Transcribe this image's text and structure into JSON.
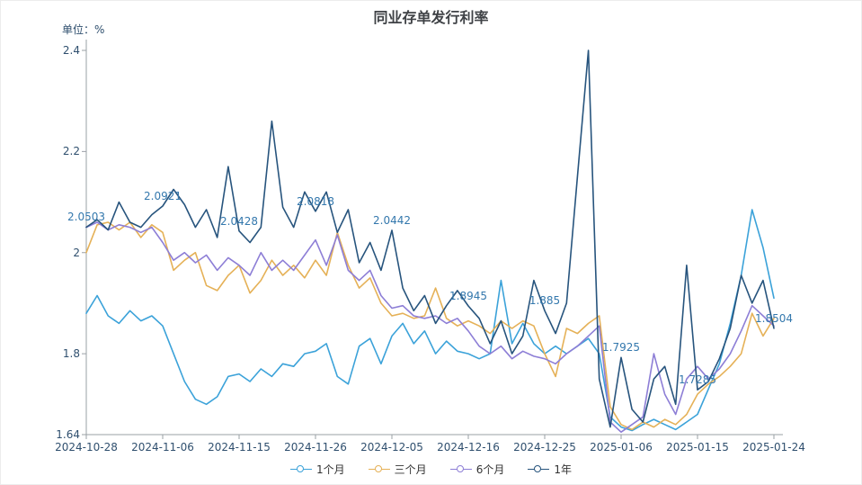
{
  "title": "同业存单发行利率",
  "unit_label": "单位：%",
  "legend": {
    "position": "bottom"
  },
  "chart_data": {
    "type": "line",
    "title": "同业存单发行利率",
    "ylabel": "单位：%",
    "ylim": [
      1.64,
      2.4
    ],
    "y_ticks": [
      1.64,
      1.8,
      2,
      2.2,
      2.4
    ],
    "grid": false,
    "legend_position": "bottom",
    "x_tick_labels": [
      "2024-10-28",
      "2024-11-06",
      "2024-11-15",
      "2024-11-26",
      "2024-12-05",
      "2024-12-16",
      "2024-12-25",
      "2025-01-06",
      "2025-01-15",
      "2025-01-24"
    ],
    "point_labels": [
      {
        "tick": 0,
        "text": "2.0503",
        "value": 2.0503
      },
      {
        "tick": 1,
        "text": "2.0921",
        "value": 2.0921
      },
      {
        "tick": 2,
        "text": "2.0428",
        "value": 2.0428
      },
      {
        "tick": 3,
        "text": "2.0818",
        "value": 2.0818
      },
      {
        "tick": 4,
        "text": "2.0442",
        "value": 2.0442
      },
      {
        "tick": 5,
        "text": "1.8945",
        "value": 1.8945
      },
      {
        "tick": 6,
        "text": "1.885",
        "value": 1.885
      },
      {
        "tick": 7,
        "text": "1.7925",
        "value": 1.7925
      },
      {
        "tick": 8,
        "text": "1.7285",
        "value": 1.7285
      },
      {
        "tick": 9,
        "text": "1.8504",
        "value": 1.8504
      }
    ],
    "series": [
      {
        "name": "1个月",
        "color": "#3ba2d9",
        "values": [
          1.88,
          1.915,
          1.875,
          1.86,
          1.885,
          1.865,
          1.875,
          1.855,
          1.8,
          1.745,
          1.71,
          1.7,
          1.715,
          1.755,
          1.76,
          1.745,
          1.77,
          1.755,
          1.78,
          1.775,
          1.8,
          1.805,
          1.82,
          1.755,
          1.74,
          1.815,
          1.83,
          1.78,
          1.835,
          1.86,
          1.82,
          1.845,
          1.8,
          1.825,
          1.805,
          1.8,
          1.79,
          1.8,
          1.945,
          1.82,
          1.86,
          1.82,
          1.8,
          1.815,
          1.8,
          1.815,
          1.83,
          1.8,
          1.675,
          1.655,
          1.648,
          1.66,
          1.67,
          1.66,
          1.65,
          1.665,
          1.68,
          1.73,
          1.78,
          1.86,
          1.955,
          2.085,
          2.01,
          1.91
        ]
      },
      {
        "name": "三个月",
        "color": "#e5b157",
        "values": [
          2.0,
          2.055,
          2.06,
          2.045,
          2.06,
          2.03,
          2.055,
          2.04,
          1.965,
          1.985,
          2.0,
          1.935,
          1.925,
          1.955,
          1.975,
          1.92,
          1.945,
          1.985,
          1.955,
          1.975,
          1.95,
          1.985,
          1.955,
          2.04,
          1.975,
          1.93,
          1.95,
          1.9,
          1.875,
          1.88,
          1.87,
          1.875,
          1.93,
          1.87,
          1.855,
          1.865,
          1.855,
          1.84,
          1.865,
          1.85,
          1.865,
          1.855,
          1.8,
          1.755,
          1.85,
          1.84,
          1.86,
          1.875,
          1.695,
          1.66,
          1.65,
          1.665,
          1.655,
          1.67,
          1.66,
          1.68,
          1.72,
          1.74,
          1.755,
          1.775,
          1.8,
          1.88,
          1.835,
          1.87
        ]
      },
      {
        "name": "6个月",
        "color": "#8d7ed6",
        "values": [
          2.05,
          2.06,
          2.045,
          2.055,
          2.05,
          2.04,
          2.05,
          2.02,
          1.985,
          2.0,
          1.98,
          1.995,
          1.965,
          1.99,
          1.975,
          1.955,
          2.0,
          1.965,
          1.985,
          1.965,
          1.995,
          2.025,
          1.975,
          2.035,
          1.965,
          1.945,
          1.965,
          1.915,
          1.89,
          1.895,
          1.875,
          1.87,
          1.875,
          1.86,
          1.87,
          1.845,
          1.815,
          1.8,
          1.815,
          1.79,
          1.805,
          1.795,
          1.79,
          1.78,
          1.8,
          1.815,
          1.835,
          1.855,
          1.665,
          1.645,
          1.66,
          1.675,
          1.8,
          1.72,
          1.68,
          1.75,
          1.775,
          1.75,
          1.77,
          1.8,
          1.845,
          1.895,
          1.875,
          1.855
        ]
      },
      {
        "name": "1年",
        "color": "#27547d",
        "values": [
          2.0503,
          2.065,
          2.045,
          2.1,
          2.06,
          2.05,
          2.075,
          2.0921,
          2.125,
          2.095,
          2.05,
          2.085,
          2.03,
          2.17,
          2.0428,
          2.02,
          2.05,
          2.26,
          2.09,
          2.05,
          2.12,
          2.0818,
          2.12,
          2.04,
          2.085,
          1.98,
          2.02,
          1.965,
          2.0442,
          1.93,
          1.885,
          1.915,
          1.86,
          1.895,
          1.925,
          1.8945,
          1.87,
          1.82,
          1.865,
          1.8,
          1.835,
          1.945,
          1.885,
          1.84,
          1.9,
          2.15,
          2.4,
          1.75,
          1.655,
          1.7925,
          1.69,
          1.665,
          1.75,
          1.775,
          1.7,
          1.975,
          1.7285,
          1.745,
          1.79,
          1.85,
          1.955,
          1.9,
          1.945,
          1.8504
        ]
      }
    ]
  }
}
